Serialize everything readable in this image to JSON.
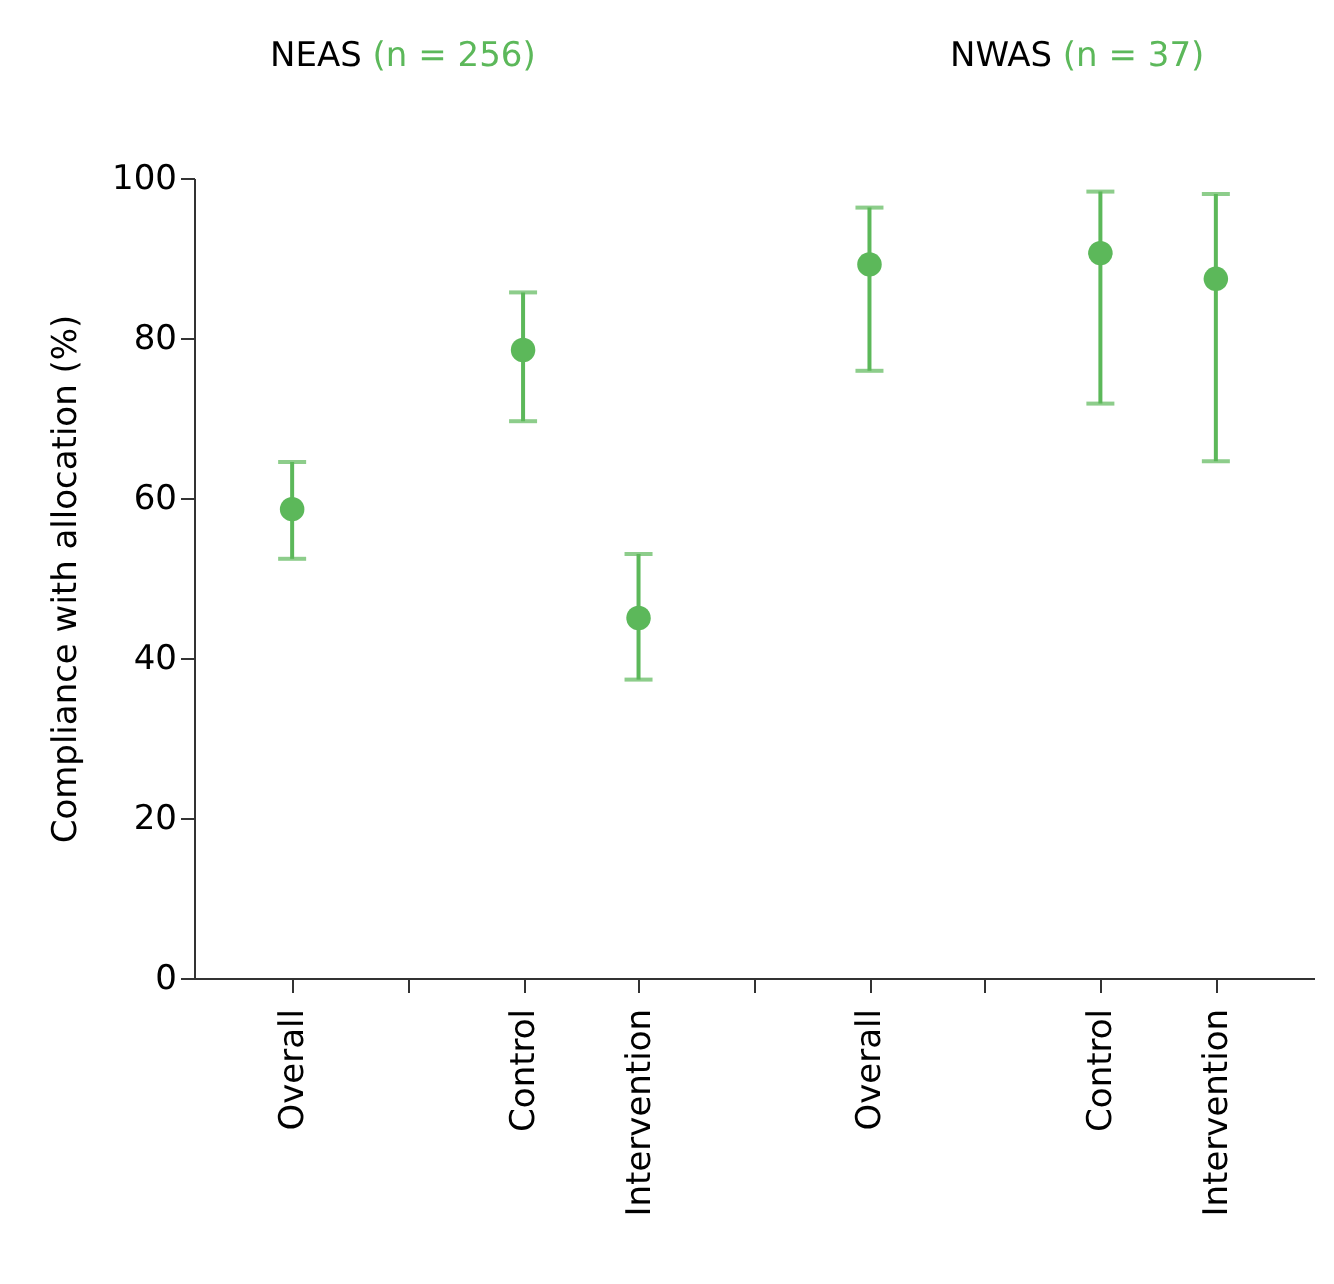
{
  "chart_data": {
    "type": "scatter",
    "ylabel": "Compliance with allocation (%)",
    "annotations": [
      "NEAS (n = 256)",
      "NWAS (n = 37)"
    ],
    "categories": [
      "Overall",
      null,
      "Control",
      "Intervention",
      null,
      "Overall",
      null,
      "Control",
      "Intervention"
    ],
    "values": [
      58.6,
      null,
      78.5,
      45.0,
      null,
      89.2,
      null,
      90.6,
      87.4
    ],
    "errors": [
      [
        52.4,
        64.5
      ],
      null,
      [
        69.6,
        85.7
      ],
      [
        37.3,
        53.0
      ],
      null,
      [
        75.9,
        96.3
      ],
      null,
      [
        71.8,
        98.3
      ],
      [
        64.6,
        98.0
      ]
    ],
    "color": "#5cb85a",
    "marker": "circle",
    "ylim": [
      0,
      100
    ],
    "yticks": [
      0,
      20,
      40,
      60,
      80,
      100
    ]
  }
}
